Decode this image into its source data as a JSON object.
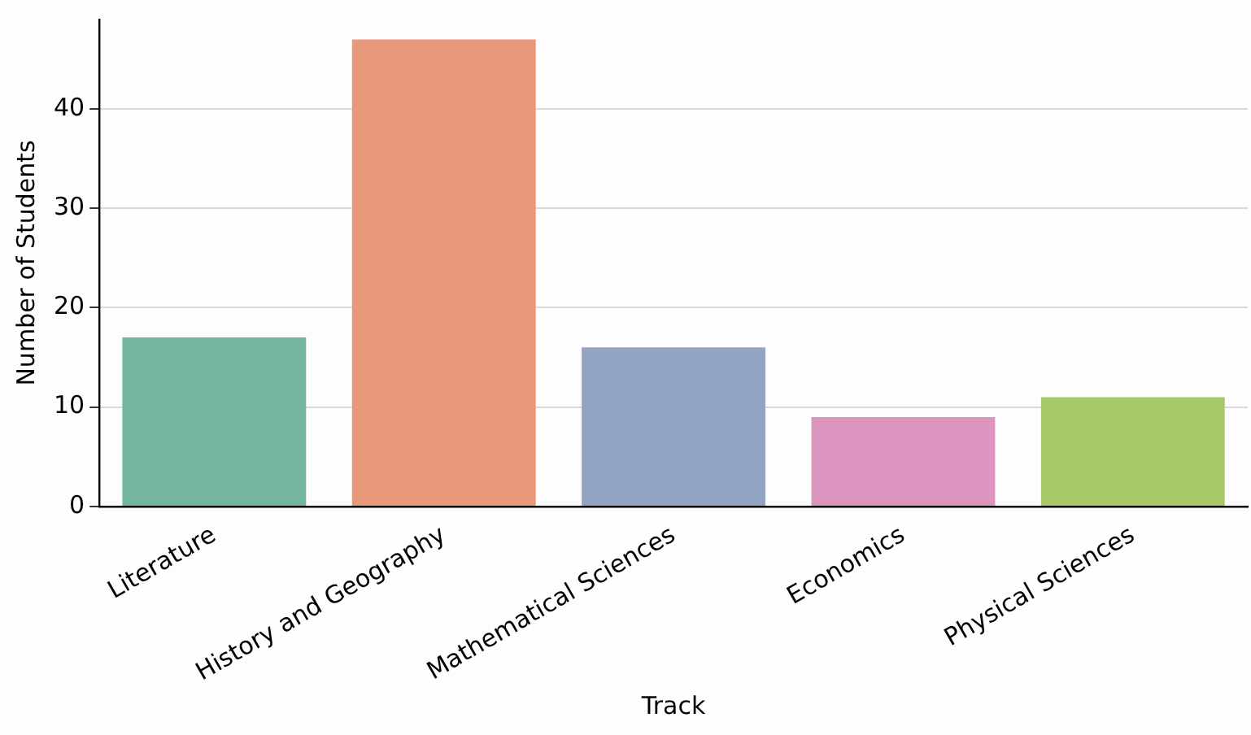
{
  "chart_data": {
    "type": "bar",
    "xlabel": "Track",
    "ylabel": "Number of Students",
    "categories": [
      "Literature",
      "History and Geography",
      "Mathematical Sciences",
      "Economics",
      "Physical Sciences"
    ],
    "values": [
      17,
      47,
      16,
      9,
      11
    ],
    "colors": [
      "#74b5a2",
      "#e9987a",
      "#93a3c4",
      "#dc95bf",
      "#a7c96a"
    ],
    "ylim": [
      0,
      49
    ],
    "yticks": [
      0,
      10,
      20,
      30,
      40
    ],
    "grid": "y",
    "legend": false
  }
}
